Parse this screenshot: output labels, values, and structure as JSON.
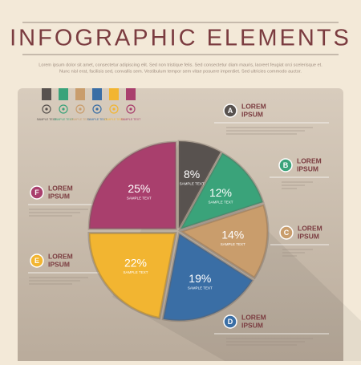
{
  "chart_data": {
    "type": "pie",
    "title": "INFOGRAPHIC ELEMENTS",
    "subtitle": [
      "Lorem ipsum dolor sit amet, consectetur adipiscing elit. Sed non tristique felis. Sed consectetur diam mauris, laoreet feugiat orci scelerisque et.",
      "Nunc nisl erat, facilisis sed, convallis sem. Vestibulum tempor sem vitae posuere imperdiet. Sed ultricies commodo auctor."
    ],
    "categories": [
      "A",
      "B",
      "C",
      "D",
      "E",
      "F"
    ],
    "values": [
      8,
      12,
      14,
      19,
      22,
      25
    ],
    "value_labels": [
      "8%",
      "12%",
      "14%",
      "19%",
      "22%",
      "25%"
    ],
    "colors": [
      "#58524f",
      "#3aa37a",
      "#c99d6c",
      "#3a6ea5",
      "#f2b531",
      "#a93f6d"
    ],
    "slice_notes": [
      "SAMPLE TEXT",
      "SAMPLE TEXT",
      "SAMPLE TEXT",
      "SAMPLE TEXT",
      "SAMPLE TEXT",
      "SAMPLE TEXT"
    ],
    "callouts": [
      [
        "LOREM",
        "IPSUM"
      ],
      [
        "LOREM",
        "IPSUM"
      ],
      [
        "LOREM",
        "IPSUM"
      ],
      [
        "LOREM",
        "IPSUM"
      ],
      [
        "LOREM",
        "IPSUM"
      ],
      [
        "LOREM",
        "IPSUM"
      ]
    ]
  },
  "icon_bar": [
    "SAMPLE TEXT",
    "SAMPLE TEXT",
    "SAMPLE TEXT",
    "SAMPLE TEXT",
    "SAMPLE TEXT",
    "SAMPLE TEXT"
  ]
}
